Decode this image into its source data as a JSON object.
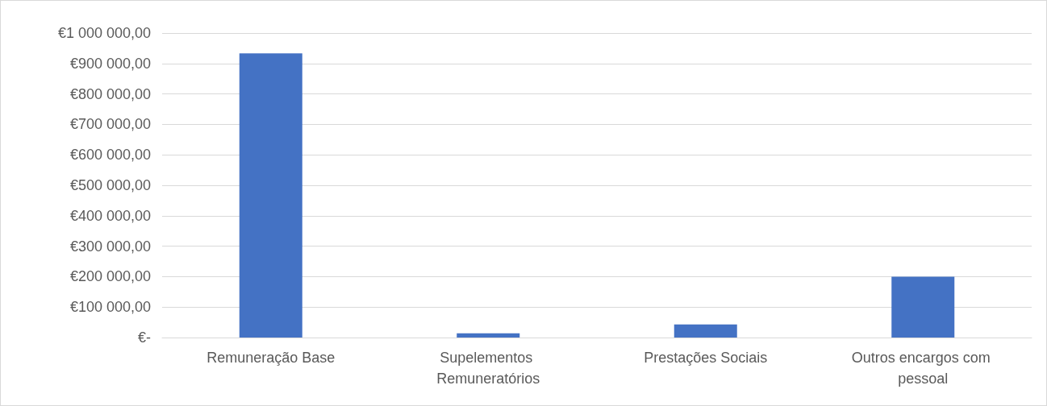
{
  "chart_data": {
    "type": "bar",
    "categories": [
      "Remuneração Base",
      "Supelementos Remuneratórios",
      "Prestações Sociais",
      "Outros encargos com pessoal"
    ],
    "values": [
      933000,
      14000,
      43000,
      200000
    ],
    "color": "#4472c4",
    "ylim": [
      0,
      1000000
    ],
    "yticks": [
      {
        "value": 0,
        "label": "€-"
      },
      {
        "value": 100000,
        "label": "€100 000,00"
      },
      {
        "value": 200000,
        "label": "€200 000,00"
      },
      {
        "value": 300000,
        "label": "€300 000,00"
      },
      {
        "value": 400000,
        "label": "€400 000,00"
      },
      {
        "value": 500000,
        "label": "€500 000,00"
      },
      {
        "value": 600000,
        "label": "€600 000,00"
      },
      {
        "value": 700000,
        "label": "€700 000,00"
      },
      {
        "value": 800000,
        "label": "€800 000,00"
      },
      {
        "value": 900000,
        "label": "€900 000,00"
      },
      {
        "value": 1000000,
        "label": "€1 000 000,00"
      }
    ],
    "grid": true
  }
}
